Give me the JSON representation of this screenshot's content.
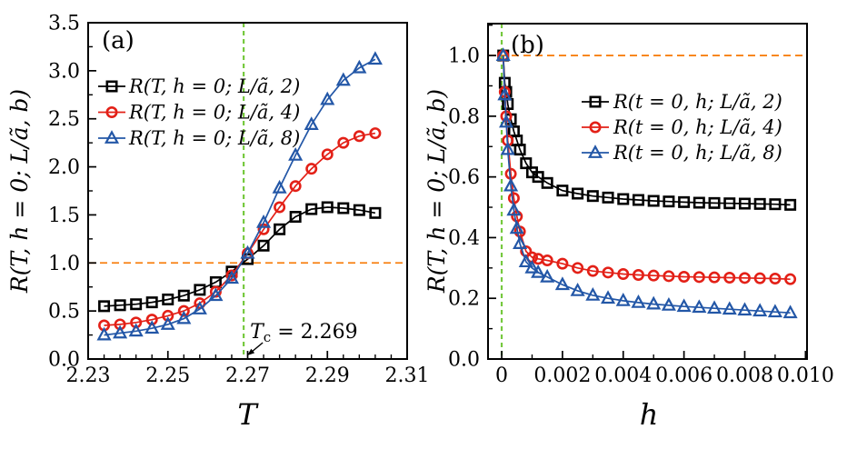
{
  "figure": {
    "colors": {
      "black": "#000000",
      "red": "#e32017",
      "blue": "#2357a7",
      "green": "#76c93f",
      "orange": "#f88010",
      "axis": "#000000"
    }
  },
  "chart_data": [
    {
      "type": "line",
      "panel_label": "(a)",
      "xlabel": "T",
      "ylabel": "R(T, h = 0; L/ã, b)",
      "xlim": [
        2.23,
        2.31
      ],
      "ylim": [
        0,
        3.5
      ],
      "grid": false,
      "legend_position": "upper-left",
      "x_ticks": {
        "major": [
          2.23,
          2.25,
          2.27,
          2.29,
          2.31
        ],
        "labels": [
          "2.23",
          "2.25",
          "2.27",
          "2.29",
          "2.31"
        ],
        "minor_step": 0.004
      },
      "y_ticks": {
        "major": [
          0,
          0.5,
          1.0,
          1.5,
          2.0,
          2.5,
          3.0,
          3.5
        ],
        "labels": [
          "0.0",
          "0.5",
          "1.0",
          "1.5",
          "2.0",
          "2.5",
          "3.0",
          "3.5"
        ],
        "minor_step": 0.25
      },
      "reference_lines": [
        {
          "orientation": "vertical",
          "value": 2.269,
          "style": "dashed",
          "color_key": "green"
        },
        {
          "orientation": "horizontal",
          "value": 1.0,
          "style": "dashed",
          "color_key": "orange"
        }
      ],
      "annotation": {
        "symbol": "T",
        "subscript": "c",
        "rest": " = 2.269",
        "arrow_to_x": 2.269
      },
      "x": [
        2.234,
        2.238,
        2.242,
        2.246,
        2.25,
        2.254,
        2.258,
        2.262,
        2.266,
        2.27,
        2.274,
        2.278,
        2.282,
        2.286,
        2.29,
        2.294,
        2.298,
        2.302
      ],
      "series": [
        {
          "name": "R(T, h = 0; L/ã, 2)",
          "marker": "square",
          "color_key": "black",
          "values": [
            0.55,
            0.56,
            0.57,
            0.59,
            0.62,
            0.66,
            0.72,
            0.8,
            0.91,
            1.04,
            1.18,
            1.35,
            1.48,
            1.56,
            1.58,
            1.57,
            1.55,
            1.52
          ]
        },
        {
          "name": "R(T, h = 0; L/ã, 4)",
          "marker": "circle",
          "color_key": "red",
          "values": [
            0.35,
            0.36,
            0.38,
            0.41,
            0.45,
            0.5,
            0.58,
            0.7,
            0.87,
            1.1,
            1.35,
            1.58,
            1.8,
            1.98,
            2.13,
            2.25,
            2.32,
            2.35
          ]
        },
        {
          "name": "R(T, h = 0; L/ã, 8)",
          "marker": "triangle",
          "color_key": "blue",
          "values": [
            0.25,
            0.27,
            0.29,
            0.32,
            0.36,
            0.42,
            0.52,
            0.66,
            0.84,
            1.1,
            1.42,
            1.78,
            2.12,
            2.44,
            2.7,
            2.9,
            3.03,
            3.12
          ]
        }
      ]
    },
    {
      "type": "line",
      "panel_label": "(b)",
      "xlabel": "h",
      "ylabel": "R(T, h = 0; L/ã, b)",
      "xlim": [
        -0.00045,
        0.01005
      ],
      "ylim": [
        0,
        1.105
      ],
      "grid": false,
      "legend_position": "upper-right",
      "x_ticks": {
        "major": [
          0,
          0.002,
          0.004,
          0.006,
          0.008,
          0.01
        ],
        "labels": [
          "0",
          "0.002",
          "0.004",
          "0.006",
          "0.008",
          "0.010"
        ],
        "minor_step": 0.001
      },
      "y_ticks": {
        "major": [
          0,
          0.2,
          0.4,
          0.6,
          0.8,
          1.0
        ],
        "labels": [
          "0.0",
          "0.2",
          "0.4",
          "0.6",
          "0.8",
          "1.0"
        ],
        "minor_step": 0.1
      },
      "reference_lines": [
        {
          "orientation": "vertical",
          "value": 0,
          "style": "dashed",
          "color_key": "green"
        },
        {
          "orientation": "horizontal",
          "value": 1.0,
          "style": "dashed",
          "color_key": "orange"
        }
      ],
      "x": [
        5e-05,
        0.0001,
        0.00015,
        0.0002,
        0.0003,
        0.0004,
        0.0005,
        0.0006,
        0.0008,
        0.001,
        0.0012,
        0.0015,
        0.002,
        0.0025,
        0.003,
        0.0035,
        0.004,
        0.0045,
        0.005,
        0.0055,
        0.006,
        0.0065,
        0.007,
        0.0075,
        0.008,
        0.0085,
        0.009,
        0.0095
      ],
      "series": [
        {
          "name": "R(t = 0, h; L/ã, 2)",
          "marker": "square",
          "color_key": "black",
          "values": [
            1.0,
            0.91,
            0.88,
            0.84,
            0.79,
            0.75,
            0.72,
            0.69,
            0.645,
            0.615,
            0.6,
            0.58,
            0.555,
            0.545,
            0.537,
            0.532,
            0.527,
            0.524,
            0.521,
            0.519,
            0.517,
            0.515,
            0.514,
            0.513,
            0.512,
            0.511,
            0.51,
            0.508
          ]
        },
        {
          "name": "R(t = 0, h; L/ã, 4)",
          "marker": "circle",
          "color_key": "red",
          "values": [
            1.0,
            0.88,
            0.8,
            0.72,
            0.61,
            0.53,
            0.47,
            0.42,
            0.355,
            0.335,
            0.33,
            0.325,
            0.314,
            0.3,
            0.29,
            0.285,
            0.28,
            0.277,
            0.275,
            0.273,
            0.271,
            0.27,
            0.269,
            0.268,
            0.267,
            0.266,
            0.265,
            0.263
          ]
        },
        {
          "name": "R(t = 0, h; L/ã, 8)",
          "marker": "triangle",
          "color_key": "blue",
          "values": [
            1.0,
            0.87,
            0.78,
            0.69,
            0.57,
            0.49,
            0.43,
            0.38,
            0.32,
            0.3,
            0.285,
            0.27,
            0.245,
            0.225,
            0.21,
            0.2,
            0.192,
            0.186,
            0.181,
            0.177,
            0.173,
            0.17,
            0.167,
            0.164,
            0.161,
            0.158,
            0.155,
            0.152
          ]
        }
      ]
    }
  ]
}
